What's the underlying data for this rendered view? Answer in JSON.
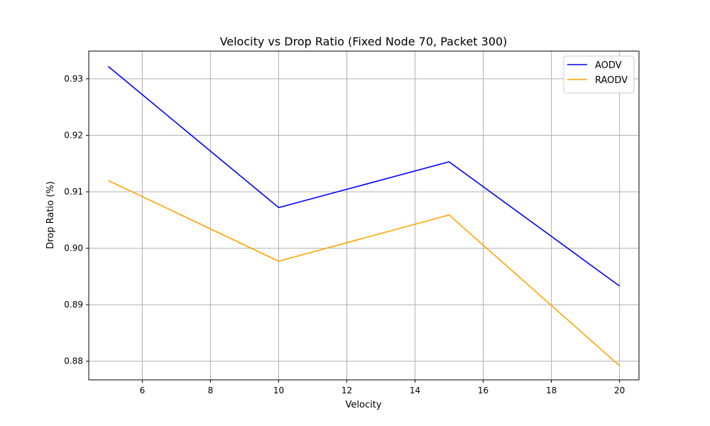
{
  "chart_data": {
    "type": "line",
    "title": "Velocity vs Drop Ratio (Fixed Node 70, Packet 300)",
    "xlabel": "Velocity",
    "ylabel": "Drop Ratio (%)",
    "xlim": [
      4.43,
      20.57
    ],
    "ylim": [
      0.8767,
      0.9349
    ],
    "x_ticks": [
      6,
      8,
      10,
      12,
      14,
      16,
      18,
      20
    ],
    "y_ticks": [
      0.88,
      0.89,
      0.9,
      0.91,
      0.92,
      0.93
    ],
    "y_tick_labels": [
      "0.88",
      "0.89",
      "0.90",
      "0.91",
      "0.92",
      "0.93"
    ],
    "x": [
      5,
      10,
      15,
      20
    ],
    "grid": true,
    "legend_position": "top-right",
    "series": [
      {
        "name": "AODV",
        "color": "#0000ff",
        "values": [
          0.9322,
          0.9072,
          0.9153,
          0.8933
        ]
      },
      {
        "name": "RAODV",
        "color": "#ffa500",
        "values": [
          0.912,
          0.8977,
          0.9059,
          0.8792
        ]
      }
    ]
  }
}
